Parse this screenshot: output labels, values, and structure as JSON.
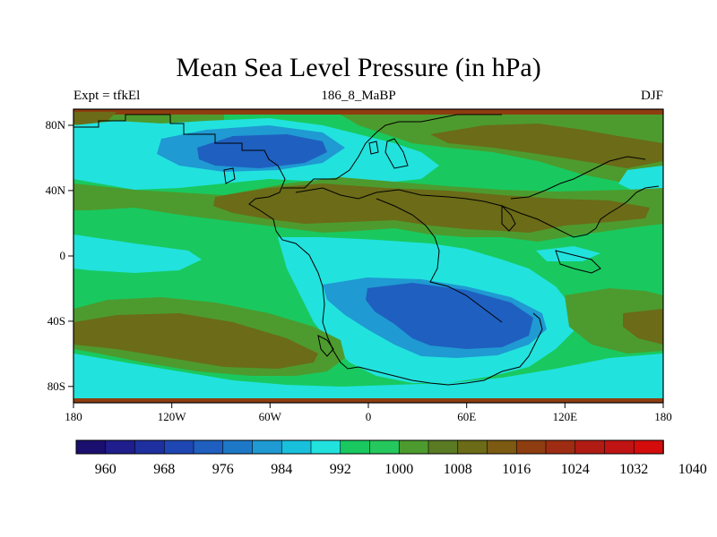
{
  "title": "Mean Sea Level Pressure (in hPa)",
  "left_label": "Expt = tfkEl",
  "center_label": "186_8_MaBP",
  "right_label": "DJF",
  "x_ticks": [
    "180",
    "120W",
    "60W",
    "0",
    "60E",
    "120E",
    "180"
  ],
  "y_ticks": [
    "80N",
    "40N",
    "0",
    "40S",
    "80S"
  ],
  "colorbar": {
    "colors": [
      "#1a0f6e",
      "#1f1e8c",
      "#1e30a0",
      "#1f47b4",
      "#1f5fc0",
      "#1e78c8",
      "#1f9ad2",
      "#18c0dc",
      "#22e2de",
      "#19c95f",
      "#25c85c",
      "#4d9b2e",
      "#5a7a24",
      "#6b6b18",
      "#7c5a12",
      "#8e3d10",
      "#9e2c12",
      "#b01c14",
      "#c01414",
      "#d40c0c"
    ],
    "labels": [
      "960",
      "968",
      "976",
      "984",
      "992",
      "1000",
      "1008",
      "1016",
      "1024",
      "1032",
      "1040"
    ]
  },
  "colors": {
    "high": "#6b6b18",
    "mid_high": "#4d9b2e",
    "neutral": "#19c95f",
    "low1": "#22e2de",
    "low2": "#1f9ad2",
    "low3": "#1f5fc0",
    "extreme_high": "#8e3d10",
    "coast": "#000000"
  }
}
